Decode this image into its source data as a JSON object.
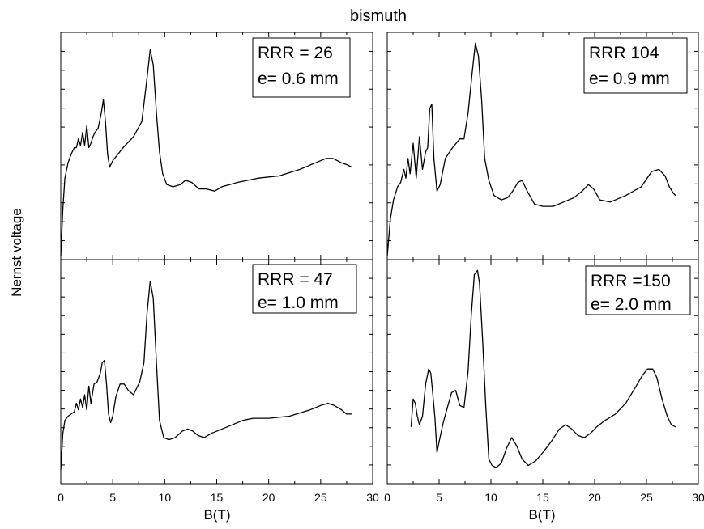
{
  "chart_data": {
    "type": "line",
    "title": "bismuth",
    "xlabel": "B(T)",
    "ylabel": "Nernst voltage",
    "xlim": [
      0,
      30
    ],
    "xticks": [
      0,
      5,
      10,
      15,
      20,
      25,
      30
    ],
    "grid": false,
    "y_tick_labels_shown": false,
    "panels": [
      {
        "id": "top-left",
        "annotation": [
          "RRR = 26",
          "e= 0.6 mm"
        ],
        "annotation_position": "top-right",
        "series": [
          {
            "x": [
              0.0,
              0.2,
              0.4,
              0.7,
              1.0,
              1.3,
              1.5,
              1.7,
              1.9,
              2.1,
              2.3,
              2.5,
              2.7,
              2.9,
              3.1,
              3.3,
              3.6,
              3.9,
              4.1,
              4.3,
              4.5,
              4.7,
              5.0,
              5.5,
              6.0,
              7.0,
              7.8,
              8.3,
              8.6,
              8.9,
              9.2,
              9.5,
              9.8,
              10.2,
              10.8,
              11.5,
              12.0,
              12.6,
              13.3,
              14.0,
              14.8,
              15.5,
              17.0,
              19.0,
              21.0,
              23.0,
              24.5,
              25.5,
              26.2,
              27.0,
              27.6,
              28.0
            ],
            "y": [
              0.0,
              0.22,
              0.36,
              0.43,
              0.47,
              0.5,
              0.5,
              0.54,
              0.51,
              0.57,
              0.51,
              0.6,
              0.5,
              0.52,
              0.55,
              0.57,
              0.59,
              0.66,
              0.72,
              0.62,
              0.47,
              0.41,
              0.44,
              0.47,
              0.5,
              0.55,
              0.62,
              0.82,
              0.95,
              0.88,
              0.66,
              0.48,
              0.38,
              0.33,
              0.32,
              0.33,
              0.35,
              0.34,
              0.31,
              0.31,
              0.3,
              0.32,
              0.34,
              0.36,
              0.37,
              0.4,
              0.43,
              0.45,
              0.45,
              0.43,
              0.42,
              0.41
            ]
          }
        ]
      },
      {
        "id": "top-right",
        "annotation": [
          "RRR 104",
          "e= 0.9 mm"
        ],
        "annotation_position": "top-right",
        "series": [
          {
            "x": [
              0.0,
              0.3,
              0.6,
              1.0,
              1.3,
              1.6,
              1.8,
              2.0,
              2.2,
              2.5,
              2.8,
              3.1,
              3.4,
              3.7,
              3.9,
              4.1,
              4.3,
              4.5,
              4.8,
              5.1,
              5.6,
              6.3,
              7.0,
              7.4,
              7.8,
              8.2,
              8.5,
              8.8,
              9.1,
              9.4,
              9.8,
              10.3,
              11.0,
              11.6,
              12.1,
              12.6,
              13.0,
              13.5,
              14.2,
              15.0,
              16.0,
              17.0,
              18.0,
              18.8,
              19.4,
              19.9,
              20.5,
              21.5,
              23.0,
              24.5,
              25.5,
              26.2,
              26.8,
              27.2,
              27.6,
              27.8
            ],
            "y": [
              0.0,
              0.17,
              0.26,
              0.32,
              0.34,
              0.4,
              0.36,
              0.45,
              0.38,
              0.52,
              0.36,
              0.55,
              0.4,
              0.48,
              0.5,
              0.68,
              0.7,
              0.45,
              0.3,
              0.33,
              0.45,
              0.5,
              0.54,
              0.54,
              0.66,
              0.85,
              0.98,
              0.92,
              0.72,
              0.45,
              0.35,
              0.28,
              0.26,
              0.27,
              0.3,
              0.34,
              0.35,
              0.3,
              0.24,
              0.23,
              0.23,
              0.25,
              0.27,
              0.3,
              0.33,
              0.31,
              0.26,
              0.25,
              0.28,
              0.32,
              0.39,
              0.4,
              0.37,
              0.32,
              0.29,
              0.28
            ]
          }
        ]
      },
      {
        "id": "bottom-left",
        "annotation": [
          "RRR = 47",
          "e= 1.0 mm"
        ],
        "annotation_position": "top-right",
        "series": [
          {
            "x": [
              0.0,
              0.2,
              0.4,
              0.7,
              1.0,
              1.3,
              1.5,
              1.7,
              1.9,
              2.1,
              2.3,
              2.5,
              2.7,
              2.9,
              3.2,
              3.5,
              3.8,
              4.0,
              4.2,
              4.4,
              4.6,
              4.8,
              5.0,
              5.3,
              5.7,
              6.1,
              6.5,
              7.0,
              7.6,
              8.0,
              8.3,
              8.6,
              8.9,
              9.2,
              9.5,
              9.9,
              10.4,
              11.0,
              11.7,
              12.2,
              12.7,
              13.2,
              13.8,
              14.5,
              16.0,
              17.5,
              18.5,
              20.0,
              22.0,
              24.0,
              25.0,
              25.7,
              26.3,
              27.0,
              27.5,
              28.0
            ],
            "y": [
              0.05,
              0.22,
              0.28,
              0.3,
              0.31,
              0.32,
              0.36,
              0.33,
              0.38,
              0.34,
              0.4,
              0.33,
              0.44,
              0.36,
              0.45,
              0.46,
              0.5,
              0.55,
              0.56,
              0.45,
              0.31,
              0.27,
              0.3,
              0.39,
              0.45,
              0.45,
              0.42,
              0.4,
              0.46,
              0.55,
              0.78,
              0.93,
              0.85,
              0.55,
              0.28,
              0.2,
              0.19,
              0.2,
              0.23,
              0.24,
              0.23,
              0.21,
              0.2,
              0.22,
              0.25,
              0.28,
              0.29,
              0.29,
              0.3,
              0.33,
              0.35,
              0.36,
              0.35,
              0.33,
              0.31,
              0.31
            ]
          }
        ]
      },
      {
        "id": "bottom-right",
        "annotation": [
          "RRR =150",
          "e= 2.0 mm"
        ],
        "annotation_position": "top-right",
        "series": [
          {
            "x": [
              2.3,
              2.5,
              2.7,
              2.9,
              3.1,
              3.4,
              3.7,
              4.0,
              4.2,
              4.4,
              4.6,
              4.8,
              5.0,
              5.4,
              5.8,
              6.2,
              6.6,
              7.0,
              7.4,
              7.8,
              8.1,
              8.4,
              8.7,
              8.9,
              9.2,
              9.5,
              9.8,
              10.1,
              10.5,
              11.0,
              11.5,
              12.0,
              12.5,
              13.0,
              13.6,
              14.3,
              15.0,
              15.8,
              16.6,
              17.2,
              17.8,
              18.4,
              19.0,
              19.6,
              20.2,
              21.0,
              22.0,
              23.0,
              24.0,
              24.6,
              25.1,
              25.6,
              26.0,
              26.5,
              27.0,
              27.4,
              27.8
            ],
            "y": [
              0.25,
              0.38,
              0.36,
              0.3,
              0.26,
              0.3,
              0.45,
              0.52,
              0.5,
              0.4,
              0.29,
              0.13,
              0.18,
              0.27,
              0.34,
              0.41,
              0.42,
              0.35,
              0.34,
              0.51,
              0.77,
              0.96,
              0.98,
              0.92,
              0.65,
              0.35,
              0.1,
              0.07,
              0.06,
              0.08,
              0.15,
              0.2,
              0.16,
              0.1,
              0.07,
              0.09,
              0.13,
              0.18,
              0.24,
              0.26,
              0.24,
              0.21,
              0.2,
              0.22,
              0.25,
              0.28,
              0.31,
              0.36,
              0.44,
              0.49,
              0.52,
              0.52,
              0.48,
              0.38,
              0.3,
              0.26,
              0.25
            ]
          }
        ]
      }
    ]
  }
}
